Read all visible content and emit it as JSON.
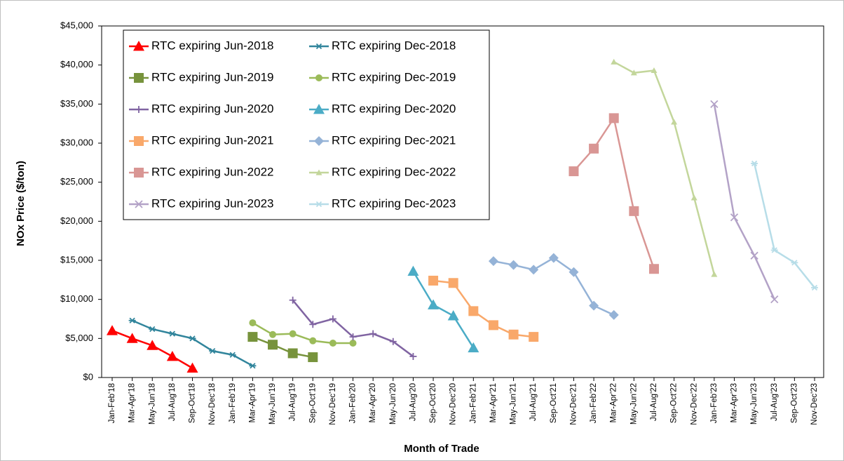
{
  "chart_data": {
    "type": "line",
    "xlabel": "Month of Trade",
    "ylabel": "NOx Price ($/ton)",
    "categories": [
      "Jan-Feb'18",
      "Mar-Apr'18",
      "May-Jun'18",
      "Jul-Aug'18",
      "Sep-Oct'18",
      "Nov-Dec'18",
      "Jan-Feb'19",
      "Mar-Apr'19",
      "May-Jun'19",
      "Jul-Aug'19",
      "Sep-Oct'19",
      "Nov-Dec'19",
      "Jan-Feb'20",
      "Mar-Apr'20",
      "May-Jun'20",
      "Jul-Aug'20",
      "Sep-Oct'20",
      "Nov-Dec'20",
      "Jan-Feb'21",
      "Mar-Apr'21",
      "May-Jun'21",
      "Jul-Aug'21",
      "Sep-Oct'21",
      "Nov-Dec'21",
      "Jan-Feb'22",
      "Mar-Apr'22",
      "May-Jun'22",
      "Jul-Aug'22",
      "Sep-Oct'22",
      "Nov-Dec'22",
      "Jan-Feb'23",
      "Mar-Apr'23",
      "May-Jun'23",
      "Jul-Aug'23",
      "Sep-Oct'23",
      "Nov-Dec'23"
    ],
    "ylim": [
      0,
      45000
    ],
    "yticks": [
      {
        "value": 0,
        "label": "$0"
      },
      {
        "value": 5000,
        "label": "$5,000"
      },
      {
        "value": 10000,
        "label": "$10,000"
      },
      {
        "value": 15000,
        "label": "$15,000"
      },
      {
        "value": 20000,
        "label": "$20,000"
      },
      {
        "value": 25000,
        "label": "$25,000"
      },
      {
        "value": 30000,
        "label": "$30,000"
      },
      {
        "value": 35000,
        "label": "$35,000"
      },
      {
        "value": 40000,
        "label": "$40,000"
      },
      {
        "value": 45000,
        "label": "$45,000"
      }
    ],
    "legend": "top-left",
    "series": [
      {
        "name": "RTC expiring Jun-2018",
        "color": "#ff0000",
        "marker": "triangle",
        "values": [
          6000,
          5000,
          4100,
          2700,
          1200,
          null,
          null,
          null,
          null,
          null,
          null,
          null,
          null,
          null,
          null,
          null,
          null,
          null,
          null,
          null,
          null,
          null,
          null,
          null,
          null,
          null,
          null,
          null,
          null,
          null,
          null,
          null,
          null,
          null,
          null,
          null
        ]
      },
      {
        "name": "RTC expiring Dec-2018",
        "color": "#31859c",
        "marker": "asterisk",
        "values": [
          null,
          7300,
          6200,
          5600,
          5000,
          3400,
          2900,
          1500,
          null,
          null,
          null,
          null,
          null,
          null,
          null,
          null,
          null,
          null,
          null,
          null,
          null,
          null,
          null,
          null,
          null,
          null,
          null,
          null,
          null,
          null,
          null,
          null,
          null,
          null,
          null,
          null
        ]
      },
      {
        "name": "RTC expiring Jun-2019",
        "color": "#77933c",
        "marker": "square",
        "values": [
          null,
          null,
          null,
          null,
          null,
          null,
          null,
          5200,
          4200,
          3100,
          2600,
          null,
          null,
          null,
          null,
          null,
          null,
          null,
          null,
          null,
          null,
          null,
          null,
          null,
          null,
          null,
          null,
          null,
          null,
          null,
          null,
          null,
          null,
          null,
          null,
          null
        ]
      },
      {
        "name": "RTC expiring Dec-2019",
        "color": "#9bbb59",
        "marker": "circle",
        "values": [
          null,
          null,
          null,
          null,
          null,
          null,
          null,
          7000,
          5500,
          5600,
          4700,
          4400,
          4400,
          null,
          null,
          null,
          null,
          null,
          null,
          null,
          null,
          null,
          null,
          null,
          null,
          null,
          null,
          null,
          null,
          null,
          null,
          null,
          null,
          null,
          null,
          null
        ]
      },
      {
        "name": "RTC expiring Jun-2020",
        "color": "#8064a2",
        "marker": "plus",
        "values": [
          null,
          null,
          null,
          null,
          null,
          null,
          null,
          null,
          null,
          9900,
          6800,
          7500,
          5200,
          5600,
          4600,
          2700,
          null,
          null,
          null,
          null,
          null,
          null,
          null,
          null,
          null,
          null,
          null,
          null,
          null,
          null,
          null,
          null,
          null,
          null,
          null,
          null
        ]
      },
      {
        "name": "RTC expiring Dec-2020",
        "color": "#4bacc6",
        "marker": "triangle",
        "values": [
          null,
          null,
          null,
          null,
          null,
          null,
          null,
          null,
          null,
          null,
          null,
          null,
          null,
          null,
          null,
          13600,
          9300,
          7900,
          3800,
          null,
          null,
          null,
          null,
          null,
          null,
          null,
          null,
          null,
          null,
          null,
          null,
          null,
          null,
          null,
          null,
          null
        ]
      },
      {
        "name": "RTC expiring Jun-2021",
        "color": "#f9a86a",
        "marker": "square",
        "values": [
          null,
          null,
          null,
          null,
          null,
          null,
          null,
          null,
          null,
          null,
          null,
          null,
          null,
          null,
          null,
          null,
          12400,
          12100,
          8500,
          6700,
          5500,
          5200,
          null,
          null,
          null,
          null,
          null,
          null,
          null,
          null,
          null,
          null,
          null,
          null,
          null,
          null
        ]
      },
      {
        "name": "RTC expiring Dec-2021",
        "color": "#95b3d7",
        "marker": "diamond",
        "values": [
          null,
          null,
          null,
          null,
          null,
          null,
          null,
          null,
          null,
          null,
          null,
          null,
          null,
          null,
          null,
          null,
          null,
          null,
          null,
          14900,
          14400,
          13800,
          15300,
          13500,
          9200,
          8000,
          null,
          null,
          null,
          null,
          null,
          null,
          null,
          null,
          null,
          null
        ]
      },
      {
        "name": "RTC expiring Jun-2022",
        "color": "#d99694",
        "marker": "square",
        "values": [
          null,
          null,
          null,
          null,
          null,
          null,
          null,
          null,
          null,
          null,
          null,
          null,
          null,
          null,
          null,
          null,
          null,
          null,
          null,
          null,
          null,
          null,
          null,
          26400,
          29300,
          33200,
          21300,
          13900,
          null,
          null,
          null,
          null,
          null,
          null,
          null,
          null
        ]
      },
      {
        "name": "RTC expiring Dec-2022",
        "color": "#c3d69b",
        "marker": "triangle-small",
        "values": [
          null,
          null,
          null,
          null,
          null,
          null,
          null,
          null,
          null,
          null,
          null,
          null,
          null,
          null,
          null,
          null,
          null,
          null,
          null,
          null,
          null,
          null,
          null,
          null,
          null,
          40400,
          39000,
          39300,
          32700,
          23000,
          13200,
          null,
          null,
          null,
          null,
          null
        ]
      },
      {
        "name": "RTC expiring Jun-2023",
        "color": "#b3a2c7",
        "marker": "x",
        "values": [
          null,
          null,
          null,
          null,
          null,
          null,
          null,
          null,
          null,
          null,
          null,
          null,
          null,
          null,
          null,
          null,
          null,
          null,
          null,
          null,
          null,
          null,
          null,
          null,
          null,
          null,
          null,
          null,
          null,
          null,
          35000,
          20500,
          15600,
          10000,
          null,
          null
        ]
      },
      {
        "name": "RTC expiring Dec-2023",
        "color": "#b7dde8",
        "marker": "asterisk",
        "values": [
          null,
          null,
          null,
          null,
          null,
          null,
          null,
          null,
          null,
          null,
          null,
          null,
          null,
          null,
          null,
          null,
          null,
          null,
          null,
          null,
          null,
          null,
          null,
          null,
          null,
          null,
          null,
          null,
          null,
          null,
          null,
          null,
          27400,
          16300,
          14700,
          11500
        ]
      }
    ]
  }
}
